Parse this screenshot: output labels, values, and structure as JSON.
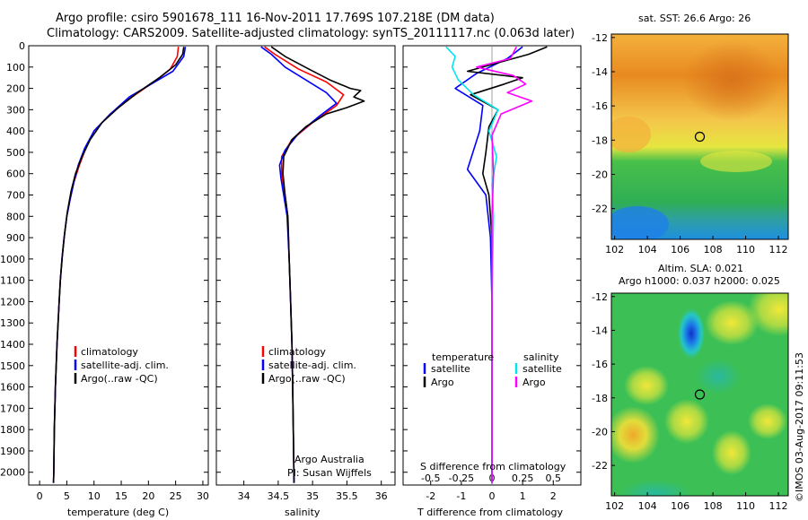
{
  "header": {
    "title_line1": "Argo profile: csiro 5901678_111 16-Nov-2011 17.769S 107.218E (DM data)",
    "title_line2": "Climatology: CARS2009. Satellite-adjusted climatology: synTS_20111117.nc (0.063d later)"
  },
  "stamp": "©IMOS 03-Aug-2017 09:11:53",
  "colors": {
    "climatology": "#ff0000",
    "satellite": "#0000ff",
    "argo": "#000000",
    "sal_satellite": "#00e5ee",
    "sal_argo": "#ff00ff"
  },
  "chart_data": [
    {
      "type": "line",
      "panel": "temperature",
      "xlabel": "temperature (deg C)",
      "ylabel": "",
      "xlim": [
        -2,
        31
      ],
      "ylim": [
        2060,
        0
      ],
      "xticks": [
        "0",
        "5",
        "10",
        "15",
        "20",
        "25",
        "30"
      ],
      "yticks": [
        "0",
        "100",
        "200",
        "300",
        "400",
        "500",
        "600",
        "700",
        "800",
        "900",
        "1000",
        "1100",
        "1200",
        "1300",
        "1400",
        "1500",
        "1600",
        "1700",
        "1800",
        "1900",
        "2000"
      ],
      "legend": [
        "climatology",
        "satellite-adj. clim.",
        "Argo(..raw -QC)"
      ],
      "series": [
        {
          "name": "climatology",
          "color": "#ff0000",
          "points": [
            [
              25.5,
              5
            ],
            [
              25.3,
              50
            ],
            [
              24,
              110
            ],
            [
              21,
              170
            ],
            [
              17,
              240
            ],
            [
              13,
              320
            ],
            [
              10,
              400
            ],
            [
              8.5,
              480
            ],
            [
              7.3,
              560
            ],
            [
              6.3,
              640
            ],
            [
              5.6,
              720
            ],
            [
              5,
              800
            ],
            [
              4.5,
              900
            ],
            [
              4.1,
              1000
            ],
            [
              3.8,
              1100
            ],
            [
              3.6,
              1200
            ],
            [
              3.4,
              1300
            ],
            [
              3.2,
              1400
            ],
            [
              3.05,
              1500
            ],
            [
              2.9,
              1600
            ],
            [
              2.8,
              1700
            ],
            [
              2.7,
              1800
            ],
            [
              2.65,
              1900
            ],
            [
              2.6,
              2000
            ],
            [
              2.55,
              2050
            ]
          ]
        },
        {
          "name": "satellite-adj. clim.",
          "color": "#0000ff",
          "points": [
            [
              26.8,
              5
            ],
            [
              26.5,
              50
            ],
            [
              24.5,
              120
            ],
            [
              20.5,
              180
            ],
            [
              16.5,
              240
            ],
            [
              13,
              320
            ],
            [
              10,
              400
            ],
            [
              8.3,
              480
            ],
            [
              7.1,
              560
            ],
            [
              6.3,
              640
            ],
            [
              5.6,
              720
            ],
            [
              5,
              800
            ],
            [
              4.5,
              900
            ],
            [
              4.1,
              1000
            ],
            [
              3.8,
              1100
            ],
            [
              3.6,
              1200
            ],
            [
              3.4,
              1300
            ],
            [
              3.2,
              1400
            ],
            [
              3.05,
              1500
            ],
            [
              2.9,
              1600
            ],
            [
              2.8,
              1700
            ],
            [
              2.7,
              1800
            ],
            [
              2.65,
              1900
            ],
            [
              2.6,
              2000
            ],
            [
              2.55,
              2050
            ]
          ]
        },
        {
          "name": "Argo(..raw -QC)",
          "color": "#000000",
          "points": [
            [
              26.5,
              5
            ],
            [
              26.3,
              40
            ],
            [
              25,
              90
            ],
            [
              22,
              150
            ],
            [
              18,
              220
            ],
            [
              14.5,
              290
            ],
            [
              11.5,
              360
            ],
            [
              9.3,
              440
            ],
            [
              7.8,
              520
            ],
            [
              6.6,
              600
            ],
            [
              5.8,
              680
            ],
            [
              5.1,
              780
            ],
            [
              4.6,
              880
            ],
            [
              4.2,
              980
            ],
            [
              3.8,
              1100
            ],
            [
              3.6,
              1200
            ],
            [
              3.4,
              1300
            ],
            [
              3.2,
              1400
            ],
            [
              3.05,
              1500
            ],
            [
              2.9,
              1600
            ],
            [
              2.8,
              1700
            ],
            [
              2.7,
              1800
            ],
            [
              2.65,
              1900
            ],
            [
              2.6,
              2000
            ],
            [
              2.55,
              2050
            ]
          ]
        }
      ]
    },
    {
      "type": "line",
      "panel": "salinity",
      "xlabel": "salinity",
      "xlim": [
        33.6,
        36.2
      ],
      "ylim": [
        2060,
        0
      ],
      "xticks": [
        "34",
        "34.5",
        "35",
        "35.5",
        "36"
      ],
      "legend": [
        "climatology",
        "satellite-adj. clim.",
        "Argo(..raw -QC)"
      ],
      "credit": [
        "Argo Australia",
        "PI: Susan Wijffels"
      ],
      "series": [
        {
          "name": "climatology",
          "color": "#ff0000",
          "points": [
            [
              34.3,
              5
            ],
            [
              34.45,
              40
            ],
            [
              34.8,
              110
            ],
            [
              35.2,
              170
            ],
            [
              35.45,
              230
            ],
            [
              35.35,
              280
            ],
            [
              35,
              360
            ],
            [
              34.7,
              440
            ],
            [
              34.55,
              520
            ],
            [
              34.55,
              600
            ],
            [
              34.6,
              700
            ],
            [
              34.64,
              800
            ],
            [
              34.66,
              1000
            ],
            [
              34.68,
              1200
            ],
            [
              34.7,
              1400
            ],
            [
              34.71,
              1600
            ],
            [
              34.72,
              1800
            ],
            [
              34.73,
              2050
            ]
          ]
        },
        {
          "name": "satellite-adj. clim.",
          "color": "#0000ff",
          "points": [
            [
              34.25,
              5
            ],
            [
              34.4,
              40
            ],
            [
              34.6,
              100
            ],
            [
              34.9,
              160
            ],
            [
              35.2,
              220
            ],
            [
              35.35,
              270
            ],
            [
              35.1,
              330
            ],
            [
              34.8,
              410
            ],
            [
              34.6,
              490
            ],
            [
              34.52,
              560
            ],
            [
              34.54,
              620
            ],
            [
              34.58,
              700
            ],
            [
              34.63,
              800
            ],
            [
              34.66,
              1000
            ],
            [
              34.68,
              1200
            ],
            [
              34.7,
              1400
            ],
            [
              34.71,
              1600
            ],
            [
              34.72,
              1800
            ],
            [
              34.73,
              2050
            ]
          ]
        },
        {
          "name": "Argo(..raw -QC)",
          "color": "#000000",
          "points": [
            [
              34.4,
              5
            ],
            [
              34.6,
              50
            ],
            [
              34.95,
              110
            ],
            [
              35.25,
              160
            ],
            [
              35.55,
              200
            ],
            [
              35.7,
              210
            ],
            [
              35.6,
              240
            ],
            [
              35.75,
              260
            ],
            [
              35.5,
              290
            ],
            [
              35.2,
              320
            ],
            [
              34.9,
              380
            ],
            [
              34.7,
              440
            ],
            [
              34.58,
              520
            ],
            [
              34.57,
              600
            ],
            [
              34.6,
              700
            ],
            [
              34.64,
              800
            ],
            [
              34.66,
              1000
            ],
            [
              34.68,
              1200
            ],
            [
              34.7,
              1400
            ],
            [
              34.71,
              1600
            ],
            [
              34.72,
              1800
            ],
            [
              34.73,
              2050
            ]
          ]
        }
      ]
    },
    {
      "type": "line",
      "panel": "differences",
      "xlabel": "T difference from climatology",
      "xlabel_top": "S difference from climatology",
      "xlim": [
        -2.9,
        2.9
      ],
      "ylim": [
        2060,
        0
      ],
      "xticks": [
        "-2",
        "-1",
        "0",
        "1",
        "2"
      ],
      "xticks_top": [
        "-0.5",
        "-0.25",
        "0",
        "0.25",
        "0.5"
      ],
      "legend_titles": [
        "temperature",
        "salinity"
      ],
      "legend": [
        "satellite",
        "Argo",
        "satellite",
        "Argo"
      ],
      "series": [
        {
          "name": "temperature satellite",
          "color": "#0000ff",
          "points": [
            [
              1,
              5
            ],
            [
              0.5,
              60
            ],
            [
              -0.5,
              130
            ],
            [
              -1.2,
              200
            ],
            [
              -0.3,
              280
            ],
            [
              -0.4,
              400
            ],
            [
              -0.8,
              580
            ],
            [
              -0.2,
              700
            ],
            [
              -0.05,
              900
            ],
            [
              0,
              1200
            ],
            [
              0,
              2050
            ]
          ]
        },
        {
          "name": "temperature Argo",
          "color": "#000000",
          "points": [
            [
              1.8,
              5
            ],
            [
              1.2,
              40
            ],
            [
              0.2,
              80
            ],
            [
              -0.8,
              120
            ],
            [
              1,
              150
            ],
            [
              0.4,
              180
            ],
            [
              -0.7,
              230
            ],
            [
              0.2,
              300
            ],
            [
              -0.1,
              380
            ],
            [
              -0.2,
              500
            ],
            [
              -0.3,
              600
            ],
            [
              -0.1,
              700
            ],
            [
              0,
              900
            ],
            [
              0,
              1200
            ],
            [
              0,
              2050
            ]
          ]
        },
        {
          "name": "salinity satellite",
          "color": "#00e5ee",
          "points": [
            [
              -1.5,
              5
            ],
            [
              -1.2,
              50
            ],
            [
              -1.3,
              100
            ],
            [
              -1.1,
              160
            ],
            [
              -0.6,
              230
            ],
            [
              0.2,
              300
            ],
            [
              -0.1,
              400
            ],
            [
              0.15,
              520
            ],
            [
              0,
              650
            ],
            [
              0.05,
              800
            ],
            [
              0,
              1200
            ],
            [
              0,
              2050
            ]
          ]
        },
        {
          "name": "salinity Argo",
          "color": "#ff00ff",
          "points": [
            [
              0.8,
              5
            ],
            [
              0.6,
              60
            ],
            [
              -0.5,
              100
            ],
            [
              0.7,
              140
            ],
            [
              1.1,
              180
            ],
            [
              0.5,
              220
            ],
            [
              1.3,
              260
            ],
            [
              0.3,
              320
            ],
            [
              0,
              420
            ],
            [
              0.05,
              600
            ],
            [
              0,
              800
            ],
            [
              0,
              2050
            ]
          ]
        }
      ]
    },
    {
      "type": "heatmap",
      "panel": "map-sst",
      "title": "sat. SST: 26.6 Argo: 26",
      "xlim": [
        101.8,
        112.6
      ],
      "ylim": [
        -23.8,
        -11.8
      ],
      "xticks": [
        "102",
        "104",
        "106",
        "108",
        "110",
        "112"
      ],
      "yticks": [
        "-12",
        "-14",
        "-16",
        "-18",
        "-20",
        "-22"
      ],
      "argo_position": [
        107.2,
        -17.8
      ]
    },
    {
      "type": "heatmap",
      "panel": "map-sla",
      "title_line1": "Altim. SLA: 0.021",
      "title_line2": "Argo h1000: 0.037 h2000: 0.025",
      "xlim": [
        101.8,
        112.6
      ],
      "ylim": [
        -23.8,
        -11.8
      ],
      "xticks": [
        "102",
        "104",
        "106",
        "108",
        "110",
        "112"
      ],
      "yticks": [
        "-12",
        "-14",
        "-16",
        "-18",
        "-20",
        "-22"
      ],
      "argo_position": [
        107.2,
        -17.8
      ]
    }
  ]
}
